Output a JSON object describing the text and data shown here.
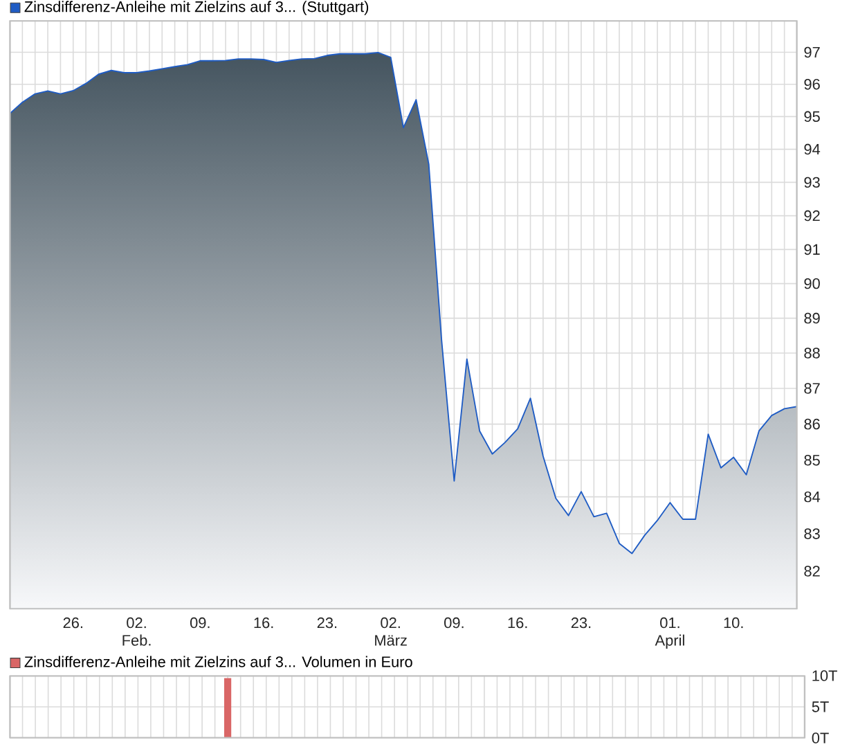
{
  "chart_data": [
    {
      "type": "area",
      "log": "y",
      "grid": true,
      "legend": "top left",
      "categories": [
        null,
        null,
        null,
        null,
        null,
        "26.",
        null,
        null,
        null,
        null,
        "02. Feb.",
        null,
        null,
        null,
        null,
        "09.",
        null,
        null,
        null,
        null,
        "16.",
        null,
        null,
        null,
        null,
        "23.",
        null,
        null,
        null,
        null,
        "02. März",
        null,
        null,
        null,
        null,
        "09.",
        null,
        null,
        null,
        null,
        "16.",
        null,
        null,
        null,
        null,
        "23.",
        null,
        null,
        null,
        null,
        null,
        null,
        "01. April",
        null,
        null,
        null,
        null,
        "10.",
        null,
        null,
        null,
        null,
        null
      ],
      "series": [
        {
          "name": "Zinsdifferenz-Anleihe mit Zielzins auf 3... (Stuttgart)",
          "color": "#1f5cc4",
          "values": [
            95.09,
            95.44,
            95.7,
            95.79,
            95.7,
            95.8,
            96.02,
            96.31,
            96.43,
            96.36,
            96.36,
            96.41,
            96.48,
            96.55,
            96.61,
            96.73,
            96.73,
            96.74,
            96.79,
            96.79,
            96.77,
            96.68,
            96.74,
            96.79,
            96.8,
            96.9,
            96.95,
            96.95,
            96.95,
            96.99,
            96.84,
            94.66,
            95.52,
            93.54,
            88.4,
            84.43,
            87.83,
            85.81,
            85.17,
            85.49,
            85.87,
            86.72,
            85.11,
            83.96,
            83.49,
            84.14,
            83.46,
            83.55,
            82.74,
            82.47,
            82.96,
            83.36,
            83.84,
            83.39,
            83.39,
            85.72,
            84.79,
            85.08,
            84.6,
            85.81,
            86.24,
            86.43,
            86.49
          ]
        }
      ],
      "ylim": [
        81,
        98
      ],
      "yticks": [
        82,
        83,
        84,
        85,
        86,
        87,
        88,
        89,
        90,
        91,
        92,
        93,
        94,
        95,
        96,
        97
      ]
    },
    {
      "type": "bar",
      "grid": true,
      "legend": "top left",
      "categories": [
        null,
        null,
        null,
        null,
        null,
        null,
        null,
        null,
        null,
        null,
        null,
        null,
        null,
        null,
        null,
        null,
        null,
        null,
        null,
        null,
        null,
        null,
        null,
        null,
        null,
        null,
        null,
        null,
        null,
        null,
        null,
        null,
        null,
        null,
        null,
        null,
        null,
        null,
        null,
        null,
        null,
        null,
        null,
        null,
        null,
        null,
        null,
        null,
        null,
        null,
        null,
        null,
        null,
        null,
        null,
        null,
        null,
        null,
        null,
        null,
        null,
        null,
        null
      ],
      "series": [
        {
          "name": "Zinsdifferenz-Anleihe mit Zielzins auf 3... Volumen in Euro",
          "color": "#d96666",
          "values": [
            null,
            null,
            null,
            null,
            null,
            null,
            null,
            null,
            null,
            null,
            null,
            null,
            null,
            null,
            null,
            null,
            null,
            9.6,
            null,
            null,
            null,
            null,
            null,
            null,
            null,
            null,
            null,
            null,
            null,
            null,
            null,
            null,
            null,
            null,
            null,
            null,
            null,
            null,
            null,
            null,
            null,
            null,
            null,
            null,
            null,
            null,
            null,
            null,
            null,
            null,
            null,
            null,
            null,
            null,
            null,
            null,
            null,
            null,
            null,
            null,
            null,
            null,
            null
          ]
        }
      ],
      "ylim": [
        0,
        10
      ],
      "yticks": [
        {
          "value": 0,
          "label": "0T"
        },
        {
          "value": 5,
          "label": "5T"
        },
        {
          "value": 10,
          "label": "10T"
        }
      ]
    }
  ]
}
